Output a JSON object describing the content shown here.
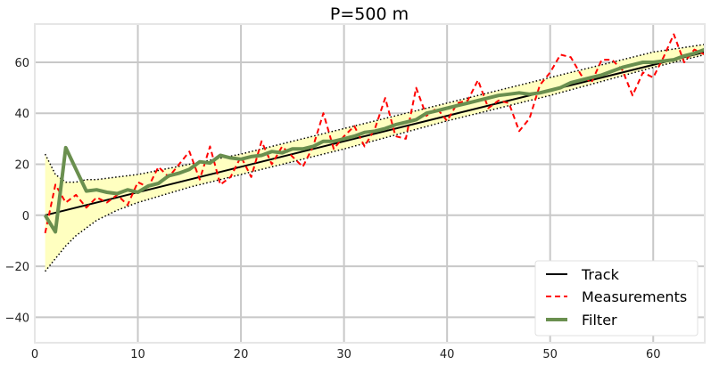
{
  "chart_data": {
    "type": "line",
    "title": "P=500 m",
    "xlabel": "",
    "ylabel": "",
    "xlim": [
      0,
      65
    ],
    "ylim": [
      -50,
      75
    ],
    "x_ticks": [
      0,
      10,
      20,
      30,
      40,
      50,
      60
    ],
    "y_ticks": [
      -40,
      -20,
      0,
      20,
      40,
      60
    ],
    "grid": true,
    "legend_position": "bottom-right",
    "series": [
      {
        "name": "Track",
        "style": "solid",
        "color": "#000000",
        "x": [
          1,
          65
        ],
        "y": [
          0,
          64
        ]
      },
      {
        "name": "Measurements",
        "style": "dashed",
        "color": "#ff0000",
        "x": [
          1,
          2,
          3,
          4,
          5,
          6,
          7,
          8,
          9,
          10,
          11,
          12,
          13,
          14,
          15,
          16,
          17,
          18,
          19,
          20,
          21,
          22,
          23,
          24,
          25,
          26,
          27,
          28,
          29,
          30,
          31,
          32,
          33,
          34,
          35,
          36,
          37,
          38,
          39,
          40,
          41,
          42,
          43,
          44,
          45,
          46,
          47,
          48,
          49,
          50,
          51,
          52,
          53,
          54,
          55,
          56,
          57,
          58,
          59,
          60,
          61,
          62,
          63,
          64,
          65
        ],
        "y": [
          -7,
          12,
          5,
          8,
          3,
          7,
          5,
          8,
          4,
          13,
          11,
          19,
          15,
          20,
          25,
          14,
          27,
          12,
          15,
          23,
          15,
          29,
          20,
          27,
          23,
          19,
          27,
          40,
          26,
          31,
          35,
          27,
          34,
          46,
          31,
          30,
          50,
          39,
          42,
          37,
          44,
          45,
          53,
          42,
          45,
          44,
          33,
          38,
          51,
          56,
          63,
          62,
          55,
          52,
          61,
          61,
          57,
          47,
          56,
          54,
          62,
          71,
          60,
          65,
          63
        ]
      },
      {
        "name": "Filter",
        "style": "solid",
        "color": "#6a8f4f",
        "x": [
          1,
          2,
          3,
          4,
          5,
          6,
          7,
          8,
          9,
          10,
          11,
          12,
          13,
          14,
          15,
          16,
          17,
          18,
          19,
          20,
          21,
          22,
          23,
          24,
          25,
          26,
          27,
          28,
          29,
          30,
          31,
          32,
          33,
          34,
          35,
          36,
          37,
          38,
          39,
          40,
          41,
          42,
          43,
          44,
          45,
          46,
          47,
          48,
          49,
          50,
          51,
          52,
          53,
          54,
          55,
          56,
          57,
          58,
          59,
          60,
          61,
          62,
          63,
          64,
          65
        ],
        "y": [
          0,
          -6.5,
          26.5,
          18,
          9.5,
          10,
          9,
          8.5,
          10,
          9,
          11.5,
          12.5,
          15.5,
          16.5,
          18,
          21,
          20.5,
          23.5,
          22.5,
          22,
          23,
          23.5,
          25,
          24.5,
          26,
          26,
          27,
          29,
          29,
          30,
          31,
          32.5,
          33,
          34,
          35.5,
          36.5,
          37.5,
          40,
          41,
          42,
          43,
          44,
          45,
          46,
          47,
          47.5,
          48,
          47.5,
          48,
          49,
          50,
          52,
          53,
          54,
          55,
          56.5,
          58,
          59,
          60,
          60,
          60.5,
          61,
          62.5,
          63.5,
          65
        ]
      }
    ],
    "uncertainty_band": {
      "x": [
        1,
        2,
        3,
        4,
        5,
        6,
        8,
        10,
        15,
        20,
        25,
        30,
        40,
        50,
        60,
        65
      ],
      "lower": [
        -22,
        -17,
        -12,
        -8,
        -5,
        -2,
        2,
        5,
        11,
        16,
        21,
        26,
        37,
        47,
        58,
        63
      ],
      "upper": [
        24,
        16,
        13,
        13,
        14,
        14,
        15,
        16,
        20,
        24,
        29,
        34,
        44,
        54,
        64,
        67
      ],
      "fill_color": "#ffffc0"
    }
  }
}
